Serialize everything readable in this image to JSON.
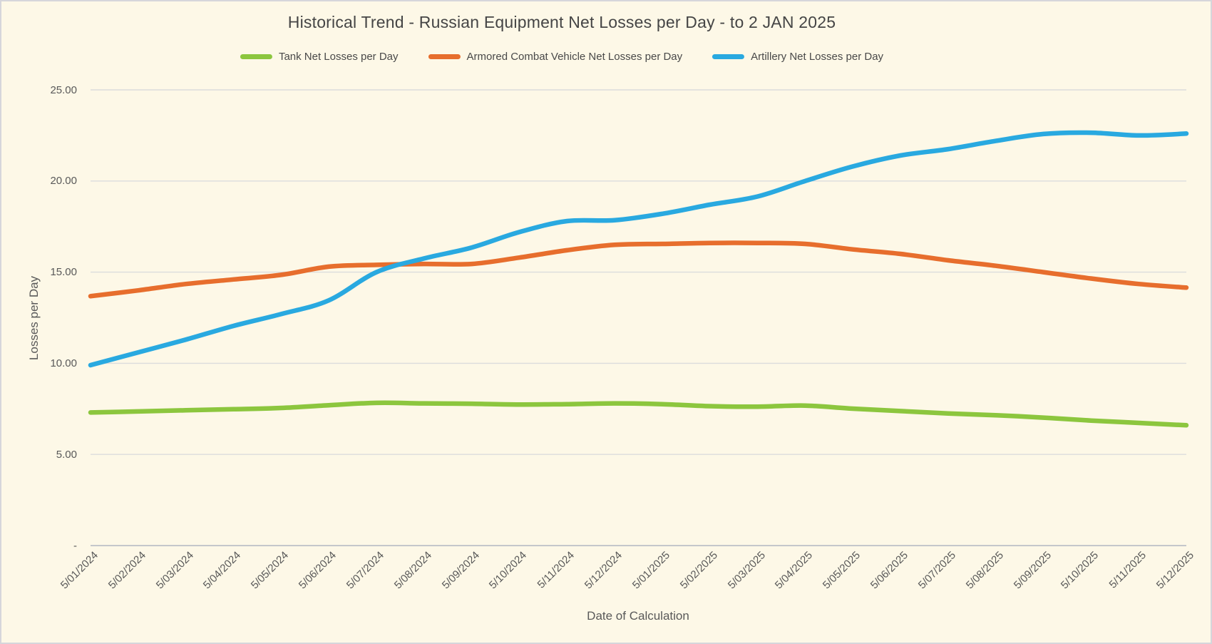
{
  "colors": {
    "background": "#FDF8E7",
    "frame_border": "#D6D6DB",
    "gridline": "#DCDCDC",
    "axis_line": "#C5C7CB",
    "title_text": "#454545",
    "axis_text": "#595959",
    "legend_text": "#494949"
  },
  "chart_data": {
    "type": "line",
    "title": "Historical Trend - Russian Equipment Net Losses per Day - to 2 JAN 2025",
    "xlabel": "Date of Calculation",
    "ylabel": "Losses per Day",
    "ylim": [
      0,
      25
    ],
    "grid": true,
    "legend_position": "top",
    "line_style": "smooth, no markers",
    "yticks": [
      {
        "label": "25.00",
        "value": 25
      },
      {
        "label": "20.00",
        "value": 20
      },
      {
        "label": "15.00",
        "value": 15
      },
      {
        "label": "10.00",
        "value": 10
      },
      {
        "label": "5.00",
        "value": 5
      },
      {
        "label": "-",
        "value": 0
      }
    ],
    "categories": [
      "5/01/2024",
      "5/02/2024",
      "5/03/2024",
      "5/04/2024",
      "5/05/2024",
      "5/06/2024",
      "5/07/2024",
      "5/08/2024",
      "5/09/2024",
      "5/10/2024",
      "5/11/2024",
      "5/12/2024",
      "5/01/2025",
      "5/02/2025",
      "5/03/2025",
      "5/04/2025",
      "5/05/2025",
      "5/06/2025",
      "5/07/2025",
      "5/08/2025",
      "5/09/2025",
      "5/10/2025",
      "5/11/2025",
      "5/12/2025"
    ],
    "series": [
      {
        "name": "Tank Net Losses per Day",
        "color": "#8CC63E",
        "values": [
          7.3,
          7.36,
          7.42,
          7.48,
          7.55,
          7.7,
          7.83,
          7.8,
          7.78,
          7.74,
          7.76,
          7.8,
          7.76,
          7.65,
          7.62,
          7.68,
          7.51,
          7.38,
          7.25,
          7.15,
          7.02,
          6.86,
          6.73,
          6.6
        ]
      },
      {
        "name": "Armored Combat Vehicle Net Losses per Day",
        "color": "#E76E2D",
        "values": [
          13.68,
          14.0,
          14.35,
          14.6,
          14.85,
          15.3,
          15.4,
          15.45,
          15.45,
          15.8,
          16.2,
          16.5,
          16.55,
          16.6,
          16.6,
          16.55,
          16.25,
          16.0,
          15.65,
          15.35,
          15.0,
          14.65,
          14.35,
          14.15
        ]
      },
      {
        "name": "Artillery Net Losses per Day",
        "color": "#29A9E0",
        "values": [
          9.9,
          10.6,
          11.3,
          12.05,
          12.7,
          13.45,
          15.0,
          15.75,
          16.35,
          17.2,
          17.8,
          17.85,
          18.2,
          18.7,
          19.15,
          20.0,
          20.8,
          21.4,
          21.75,
          22.2,
          22.58,
          22.65,
          22.5,
          22.6
        ]
      }
    ]
  }
}
